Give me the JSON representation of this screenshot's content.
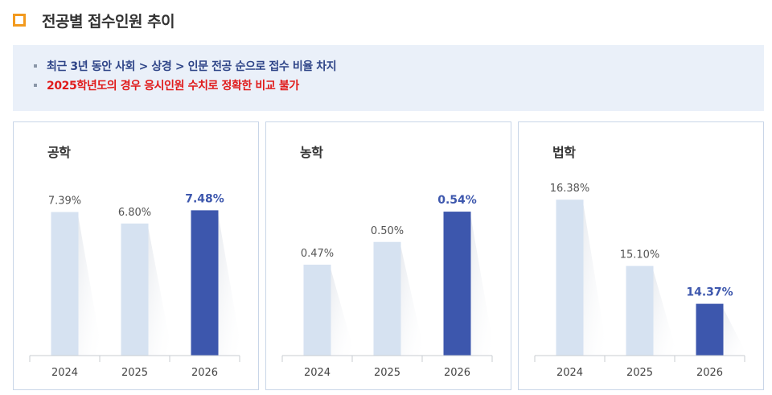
{
  "header": {
    "title": "전공별 접수인원 추이"
  },
  "notes": [
    "최근 3년 동안 사회 > 상경 > 인문 전공 순으로 접수 비율 차지",
    "2025학년도의 경우 응시인원 수치로 정확한 비교 불가"
  ],
  "colors": {
    "past": "#d6e2f1",
    "current": "#3d57ad",
    "accent_label": "#3d57ad",
    "icon": "#f29a1e"
  },
  "chart_data": [
    {
      "type": "bar",
      "title": "공학",
      "categories": [
        "2024",
        "2025",
        "2026"
      ],
      "values": [
        7.39,
        6.8,
        7.48
      ],
      "labels": [
        "7.39%",
        "6.80%",
        "7.48%"
      ],
      "highlight_index": 2,
      "ylim": [
        0,
        9.36
      ]
    },
    {
      "type": "bar",
      "title": "농학",
      "categories": [
        "2024",
        "2025",
        "2026"
      ],
      "values": [
        0.47,
        0.5,
        0.54
      ],
      "labels": [
        "0.47%",
        "0.50%",
        "0.54%"
      ],
      "highlight_index": 2,
      "ylim": [
        0.35,
        0.59
      ]
    },
    {
      "type": "bar",
      "title": "법학",
      "categories": [
        "2024",
        "2025",
        "2026"
      ],
      "values": [
        16.38,
        15.1,
        14.37
      ],
      "labels": [
        "16.38%",
        "15.10%",
        "14.37%"
      ],
      "highlight_index": 2,
      "ylim": [
        13.37,
        16.88
      ]
    }
  ]
}
